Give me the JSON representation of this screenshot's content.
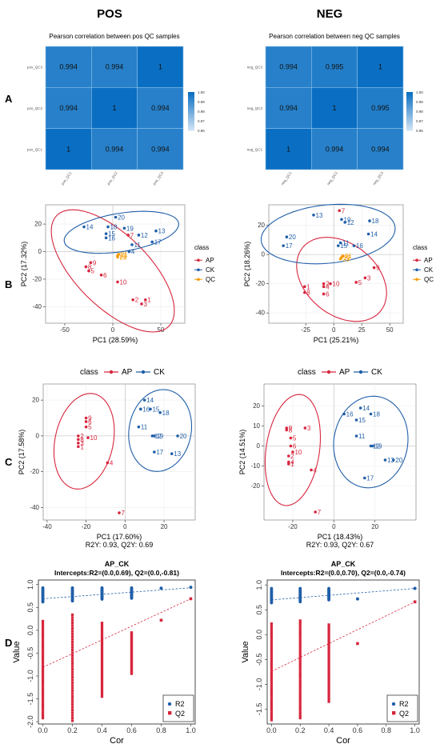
{
  "colors": {
    "AP": "#d7263d",
    "CK": "#1f5ea8",
    "QC": "#f59b00",
    "heat_low": "#ffffff",
    "heat_high": "#0a6fc2"
  },
  "headers": [
    "POS",
    "NEG"
  ],
  "row_labels": [
    "A",
    "B",
    "C",
    "D"
  ],
  "chart_data": [
    {
      "type": "heatmap",
      "title": "Pearson correlation between pos QC samples",
      "x_categories": [
        "pos_QC1",
        "pos_QC2",
        "pos_QC3"
      ],
      "y_categories": [
        "pos_QC3",
        "pos_QC2",
        "pos_QC1"
      ],
      "values": [
        [
          "0.994",
          "0.994",
          "1"
        ],
        [
          "0.994",
          "1",
          "0.994"
        ],
        [
          "1",
          "0.994",
          "0.994"
        ]
      ],
      "legend_ticks": [
        "1.00",
        "0.99",
        "0.98",
        "0.97",
        "0.96"
      ],
      "range": [
        0.96,
        1.0
      ]
    },
    {
      "type": "heatmap",
      "title": "Pearson correlation between neg QC samples",
      "x_categories": [
        "neg_QC1",
        "neg_QC2",
        "neg_QC3"
      ],
      "y_categories": [
        "neg_QC3",
        "neg_QC2",
        "neg_QC1"
      ],
      "values": [
        [
          "0.994",
          "0.995",
          "1"
        ],
        [
          "0.994",
          "1",
          "0.995"
        ],
        [
          "1",
          "0.994",
          "0.994"
        ]
      ],
      "legend_ticks": [
        "1.00",
        "0.99",
        "0.98",
        "0.97",
        "0.96"
      ],
      "range": [
        0.96,
        1.0
      ]
    },
    {
      "type": "scatter",
      "xlabel": "PC1 (28.59%)",
      "ylabel": "PC2 (17.32%)",
      "xlim": [
        -70,
        75
      ],
      "ylim": [
        -52,
        34
      ],
      "xticks": [
        -50,
        0,
        50
      ],
      "yticks": [
        -40,
        -20,
        0,
        20
      ],
      "legend_title": "class",
      "legend": [
        "AP",
        "CK",
        "QC"
      ],
      "series": [
        {
          "name": "AP",
          "points": [
            [
              16,
              12,
              "7"
            ],
            [
              -23,
              -8,
              "9"
            ],
            [
              -28,
              -11,
              "8"
            ],
            [
              -25,
              -14,
              "5"
            ],
            [
              -12,
              -17,
              "6"
            ],
            [
              5,
              -22,
              "10"
            ],
            [
              21,
              -35,
              "2"
            ],
            [
              34,
              -35,
              "1"
            ],
            [
              30,
              -38,
              "3"
            ]
          ]
        },
        {
          "name": "CK",
          "points": [
            [
              3,
              25,
              "20"
            ],
            [
              -30,
              18,
              "14"
            ],
            [
              -5,
              18,
              "18"
            ],
            [
              12,
              17,
              "19"
            ],
            [
              45,
              15,
              "13"
            ],
            [
              -7,
              13,
              "15"
            ],
            [
              -7,
              10,
              "16"
            ],
            [
              27,
              12,
              "12"
            ],
            [
              41,
              7,
              "17"
            ],
            [
              20,
              5,
              "11"
            ],
            [
              17,
              0,
              "4"
            ]
          ]
        },
        {
          "name": "QC",
          "points": [
            [
              5,
              -4,
              "23"
            ],
            [
              6,
              -2,
              "21"
            ],
            [
              5,
              -3,
              "22"
            ]
          ]
        }
      ],
      "ellipses": [
        {
          "class": "AP",
          "cx": 0,
          "cy": -14,
          "rx": 72,
          "ry": 30,
          "angle": -30
        },
        {
          "class": "CK",
          "cx": 9,
          "cy": 14,
          "rx": 60,
          "ry": 14,
          "angle": 6
        }
      ]
    },
    {
      "type": "scatter",
      "xlabel": "PC1 (25.21%)",
      "ylabel": "PC2 (18.26%)",
      "xlim": [
        -58,
        62
      ],
      "ylim": [
        -47,
        34
      ],
      "xticks": [
        -25,
        0,
        25,
        50
      ],
      "yticks": [
        -40,
        -20,
        0,
        20
      ],
      "legend_title": "class",
      "legend": [
        "AP",
        "CK",
        "QC"
      ],
      "series": [
        {
          "name": "AP",
          "points": [
            [
              36,
              -9,
              "9"
            ],
            [
              28,
              -16,
              "3"
            ],
            [
              20,
              -19,
              "5"
            ],
            [
              -3,
              -20,
              "10"
            ],
            [
              -9,
              -20,
              "2"
            ],
            [
              -26,
              -22,
              "1"
            ],
            [
              -9,
              -22,
              "4"
            ],
            [
              -26,
              -26,
              "8"
            ],
            [
              -9,
              -27,
              "6"
            ],
            [
              5,
              30,
              "7"
            ]
          ]
        },
        {
          "name": "CK",
          "points": [
            [
              -18,
              27,
              "13"
            ],
            [
              7,
              24,
              "19"
            ],
            [
              32,
              23,
              "18"
            ],
            [
              -42,
              12,
              "20"
            ],
            [
              31,
              14,
              "14"
            ],
            [
              -45,
              6,
              "17"
            ],
            [
              18,
              6,
              "16"
            ],
            [
              6,
              8,
              "11"
            ],
            [
              4,
              6,
              "15"
            ],
            [
              10,
              22,
              "12"
            ]
          ]
        },
        {
          "name": "QC",
          "points": [
            [
              7,
              -2,
              "22"
            ],
            [
              8,
              -1,
              "21"
            ],
            [
              6,
              -3,
              "23"
            ]
          ]
        }
      ],
      "ellipses": [
        {
          "class": "AP",
          "cx": 7,
          "cy": -17,
          "rx": 42,
          "ry": 26,
          "angle": -22
        },
        {
          "class": "CK",
          "cx": -5,
          "cy": 14,
          "rx": 60,
          "ry": 20,
          "angle": 4
        }
      ]
    },
    {
      "type": "scatter",
      "legend_title": "class",
      "legend": [
        "AP",
        "CK"
      ],
      "xlabel": "PC1 (17.60%)",
      "ylabel": "PC2 (17.58%)",
      "caption": "R2Y: 0.93, Q2Y: 0.69",
      "xlim": [
        -42,
        36
      ],
      "ylim": [
        -47,
        29
      ],
      "xticks": [
        -40,
        -20,
        0,
        20
      ],
      "yticks": [
        -40,
        -20,
        0,
        20
      ],
      "series": [
        {
          "name": "AP",
          "points": [
            [
              -20,
              10,
              "9"
            ],
            [
              -20,
              8,
              "6"
            ],
            [
              -20,
              5,
              "5"
            ],
            [
              -24,
              0,
              "2"
            ],
            [
              -24,
              -2,
              "8"
            ],
            [
              -24,
              -4,
              "3"
            ],
            [
              -24,
              -6,
              "1"
            ],
            [
              -19,
              -1,
              "10"
            ],
            [
              -9,
              -15,
              "4"
            ],
            [
              -3,
              -43,
              "7"
            ]
          ]
        },
        {
          "name": "CK",
          "points": [
            [
              10,
              20,
              "14"
            ],
            [
              8,
              15,
              "16"
            ],
            [
              13,
              15,
              "15"
            ],
            [
              18,
              13,
              "18"
            ],
            [
              7,
              5,
              "11"
            ],
            [
              14,
              0,
              "12"
            ],
            [
              15,
              0,
              "19"
            ],
            [
              27,
              0,
              "20"
            ],
            [
              15,
              -9,
              "17"
            ],
            [
              24,
              -10,
              "13"
            ]
          ]
        }
      ],
      "ellipses": [
        {
          "class": "AP",
          "cx": -21,
          "cy": -3,
          "rx": 15,
          "ry": 27,
          "angle": -10
        },
        {
          "class": "CK",
          "cx": 18,
          "cy": 3,
          "rx": 16,
          "ry": 23,
          "angle": -8
        }
      ]
    },
    {
      "type": "scatter",
      "legend_title": "class",
      "legend": [
        "AP",
        "CK"
      ],
      "xlabel": "PC1 (18.43%)",
      "ylabel": "PC2 (14.51%)",
      "caption": "R2Y: 0.93, Q2Y: 0.67",
      "xlim": [
        -34,
        40
      ],
      "ylim": [
        -37,
        31
      ],
      "xticks": [
        -20,
        0,
        20
      ],
      "yticks": [
        -20,
        -10,
        0,
        10,
        20
      ],
      "series": [
        {
          "name": "AP",
          "points": [
            [
              -23,
              9,
              "9"
            ],
            [
              -23,
              8,
              "8"
            ],
            [
              -14,
              9,
              "3"
            ],
            [
              -21,
              4,
              "5"
            ],
            [
              -21,
              0,
              "6"
            ],
            [
              -20,
              -3,
              "10"
            ],
            [
              -22,
              -5,
              "2"
            ],
            [
              -22,
              -8,
              "4"
            ],
            [
              -22,
              -9,
              "1"
            ],
            [
              -11,
              -12,
              "4"
            ],
            [
              -9,
              -33,
              "7"
            ]
          ]
        },
        {
          "name": "CK",
          "points": [
            [
              13,
              19,
              "14"
            ],
            [
              5,
              16,
              "16"
            ],
            [
              18,
              16,
              "18"
            ],
            [
              11,
              13,
              "15"
            ],
            [
              11,
              5,
              "11"
            ],
            [
              18,
              0,
              "12"
            ],
            [
              19,
              0,
              "19"
            ],
            [
              25,
              -7,
              "13"
            ],
            [
              29,
              -7,
              "20"
            ],
            [
              15,
              -16,
              "17"
            ]
          ]
        }
      ],
      "ellipses": [
        {
          "class": "AP",
          "cx": -20,
          "cy": -2,
          "rx": 13,
          "ry": 28,
          "angle": -8
        },
        {
          "class": "CK",
          "cx": 18,
          "cy": 2,
          "rx": 18,
          "ry": 23,
          "angle": -8
        }
      ]
    },
    {
      "type": "scatter",
      "title": "AP_CK",
      "subtitle": "Intercepts:R2=(0.0,0.69), Q2=(0.0,-0.81)",
      "xlabel": "Cor",
      "ylabel": "Value",
      "xlim": [
        -0.03,
        1.03
      ],
      "ylim": [
        -2.05,
        1.1
      ],
      "xticks": [
        0.0,
        0.2,
        0.4,
        0.6,
        0.8,
        1.0
      ],
      "yticks": [
        1.0,
        0.5,
        0.0,
        -0.5,
        -1.0,
        -1.5,
        -2.0
      ],
      "legend": [
        "R2",
        "Q2"
      ],
      "r2_points": {
        "columns": [
          0.0,
          0.2,
          0.4,
          0.6
        ],
        "min": [
          0.62,
          0.64,
          0.68,
          0.7
        ],
        "max": [
          0.93,
          0.93,
          0.93,
          0.93
        ],
        "extra": [
          [
            0.8,
            0.92
          ],
          [
            1.0,
            0.94
          ]
        ]
      },
      "q2_points": {
        "columns": [
          0.0,
          0.2,
          0.4,
          0.6
        ],
        "min": [
          -1.92,
          -1.98,
          -1.45,
          -0.95
        ],
        "max": [
          0.2,
          0.34,
          0.16,
          -0.05
        ],
        "extra": [
          [
            0.8,
            0.22
          ],
          [
            1.0,
            0.69
          ]
        ]
      },
      "r2_line": [
        [
          0.0,
          0.69
        ],
        [
          1.0,
          0.93
        ]
      ],
      "q2_line": [
        [
          0.0,
          -0.81
        ],
        [
          1.0,
          0.69
        ]
      ]
    },
    {
      "type": "scatter",
      "title": "AP_CK",
      "subtitle": "Intercepts:R2=(0.0,0.70), Q2=(0.0,-0.74)",
      "xlabel": "Cor",
      "ylabel": "Value",
      "xlim": [
        -0.03,
        1.03
      ],
      "ylim": [
        -1.8,
        1.1
      ],
      "xticks": [
        0.0,
        0.2,
        0.4,
        0.6,
        0.8,
        1.0
      ],
      "yticks": [
        1.0,
        0.5,
        0.0,
        -0.5,
        -1.0,
        -1.5
      ],
      "legend": [
        "R2",
        "Q2"
      ],
      "r2_points": {
        "columns": [
          0.0,
          0.2,
          0.4
        ],
        "min": [
          0.64,
          0.66,
          0.7
        ],
        "max": [
          0.93,
          0.93,
          0.93
        ],
        "extra": [
          [
            0.6,
            0.72
          ],
          [
            1.0,
            0.93
          ]
        ]
      },
      "q2_points": {
        "columns": [
          0.0,
          0.2,
          0.4
        ],
        "min": [
          -1.72,
          -1.68,
          -1.35
        ],
        "max": [
          0.22,
          0.28,
          0.2
        ],
        "extra": [
          [
            0.6,
            -0.18
          ],
          [
            1.0,
            0.66
          ]
        ]
      },
      "r2_line": [
        [
          0.0,
          0.7
        ],
        [
          1.0,
          0.93
        ]
      ],
      "q2_line": [
        [
          0.0,
          -0.74
        ],
        [
          1.0,
          0.66
        ]
      ]
    }
  ]
}
